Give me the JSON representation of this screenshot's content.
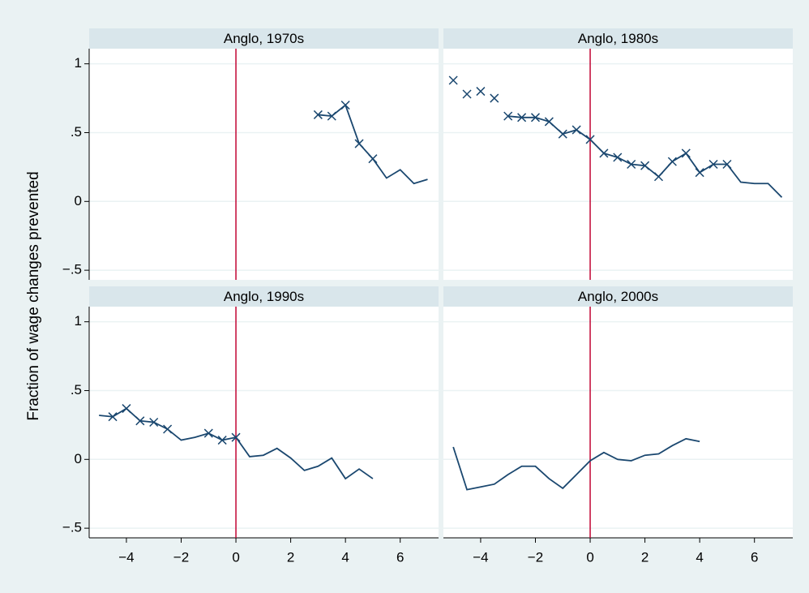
{
  "chart_data": {
    "type": "line",
    "ylabel": "Fraction of wage changes prevented",
    "xlim": [
      -5.36,
      7.4
    ],
    "ylim": [
      -0.57,
      1.11
    ],
    "xticks": [
      {
        "value": -4,
        "label": "−4"
      },
      {
        "value": -2,
        "label": "−2"
      },
      0,
      2,
      4,
      6
    ],
    "yticks": [
      {
        "value": -0.5,
        "label": "−.5"
      },
      0,
      {
        "value": 0.5,
        "label": ".5"
      },
      1
    ],
    "grid": true,
    "xline": 0,
    "xline_color": "#c10534",
    "panels": [
      {
        "title": "Anglo, 1970s",
        "x": [
          3,
          3.5,
          4,
          4.5,
          5,
          5.5,
          6,
          6.5,
          7
        ],
        "series": [
          {
            "color": "#1a476f",
            "values": [
              0.63,
              0.62,
              0.7,
              0.42,
              0.31,
              0.17,
              0.23,
              0.13,
              0.16
            ]
          },
          {
            "color": "#1a476f",
            "marker": "x",
            "values": [
              0.63,
              0.62,
              0.7,
              0.42,
              0.31,
              null,
              null,
              null,
              null
            ]
          }
        ]
      },
      {
        "title": "Anglo, 1980s",
        "x": [
          -5,
          -4.5,
          -4,
          -3.5,
          -3,
          -2.5,
          -2,
          -1.5,
          -1,
          -0.5,
          0,
          0.5,
          1,
          1.5,
          2,
          2.5,
          3,
          3.5,
          4,
          4.5,
          5,
          5.5,
          6,
          6.5,
          7
        ],
        "series": [
          {
            "color": "#1a476f",
            "values": [
              null,
              null,
              null,
              null,
              0.62,
              0.61,
              0.61,
              0.58,
              0.49,
              0.52,
              0.45,
              0.35,
              0.32,
              0.27,
              0.26,
              0.18,
              0.29,
              0.35,
              0.21,
              0.27,
              0.27,
              0.14,
              0.13,
              0.13,
              0.03
            ]
          },
          {
            "color": "#1a476f",
            "marker": "x",
            "values": [
              0.88,
              0.78,
              0.8,
              0.75,
              0.62,
              0.61,
              0.61,
              0.58,
              0.49,
              0.52,
              0.45,
              0.35,
              0.32,
              0.27,
              0.26,
              0.18,
              0.29,
              0.35,
              0.21,
              0.27,
              0.27,
              null,
              null,
              null,
              null
            ]
          }
        ]
      },
      {
        "title": "Anglo, 1990s",
        "x": [
          -5,
          -4.5,
          -4,
          -3.5,
          -3,
          -2.5,
          -2,
          -1.5,
          -1,
          -0.5,
          0,
          0.5,
          1,
          1.5,
          2,
          2.5,
          3,
          3.5,
          4,
          4.5,
          5
        ],
        "series": [
          {
            "color": "#1a476f",
            "values": [
              0.32,
              0.31,
              0.37,
              0.28,
              0.27,
              0.22,
              0.14,
              0.16,
              0.19,
              0.14,
              0.16,
              0.02,
              0.03,
              0.08,
              0.01,
              -0.08,
              -0.05,
              0.01,
              -0.14,
              -0.07,
              -0.14
            ]
          },
          {
            "color": "#1a476f",
            "marker": "x",
            "values": [
              null,
              0.31,
              0.37,
              0.28,
              0.27,
              0.22,
              null,
              null,
              0.19,
              0.14,
              0.16,
              null,
              null,
              null,
              null,
              null,
              null,
              null,
              null,
              null,
              null
            ]
          }
        ]
      },
      {
        "title": "Anglo, 2000s",
        "x": [
          -5,
          -4.5,
          -4,
          -3.5,
          -3,
          -2.5,
          -2,
          -1.5,
          -1,
          -0.5,
          0,
          0.5,
          1,
          1.5,
          2,
          2.5,
          3,
          3.5,
          4
        ],
        "series": [
          {
            "color": "#1a476f",
            "values": [
              0.09,
              -0.22,
              -0.2,
              -0.18,
              -0.11,
              -0.05,
              -0.05,
              -0.14,
              -0.21,
              -0.11,
              -0.01,
              0.05,
              0.0,
              -0.01,
              0.03,
              0.04,
              0.1,
              0.15,
              0.13
            ]
          }
        ]
      }
    ]
  }
}
